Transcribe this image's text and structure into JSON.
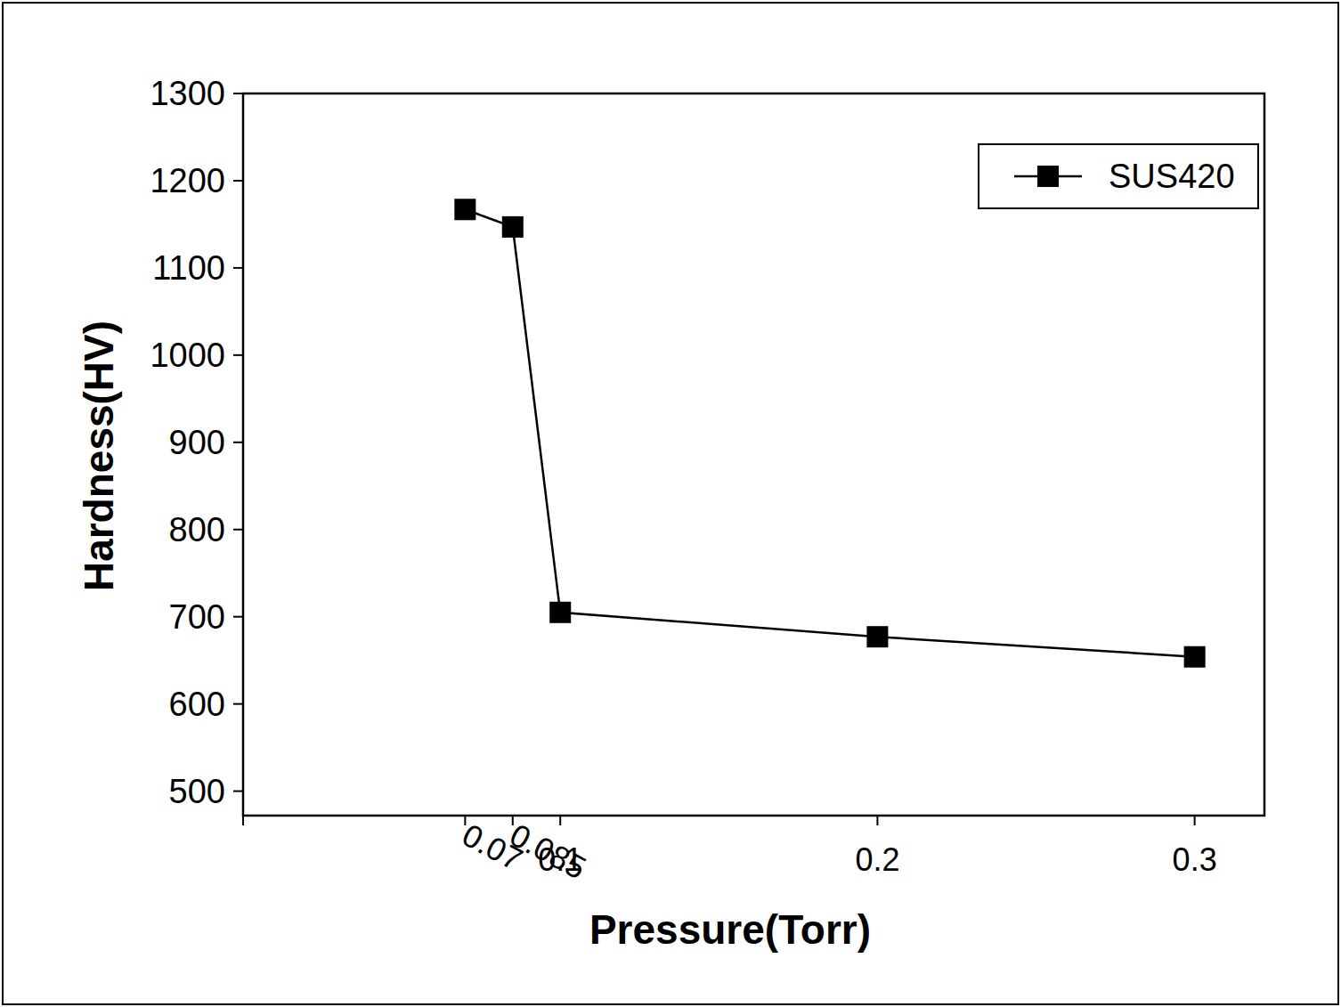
{
  "chart_data": {
    "type": "line",
    "x_label": "Pressure(Torr)",
    "y_label": "Hardness(HV)",
    "x": [
      0.07,
      0.085,
      0.1,
      0.2,
      0.3
    ],
    "series": [
      {
        "name": "SUS420",
        "color": "#000000",
        "marker": "square",
        "line_style": "solid",
        "values": [
          1167,
          1147,
          705,
          677,
          654
        ]
      }
    ],
    "xlim": [
      0,
      0.322
    ],
    "xticks": [
      0.07,
      0.085,
      0.1,
      0.2,
      0.3
    ],
    "ylim": [
      472,
      1300
    ],
    "yticks": [
      500,
      600,
      700,
      800,
      900,
      1000,
      1100,
      1200,
      1300
    ],
    "grid": false,
    "legend": "upper-right"
  }
}
